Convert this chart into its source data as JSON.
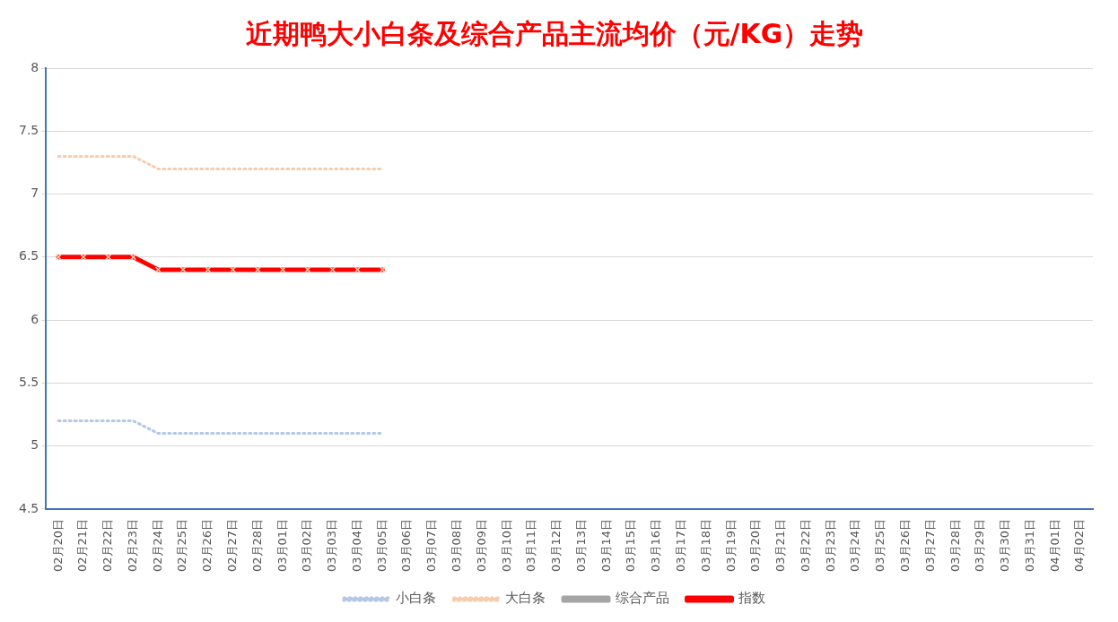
{
  "chart_data": {
    "type": "line",
    "title": "近期鸭大小白条及综合产品主流均价（元/KG）走势",
    "categories": [
      "02月20日",
      "02月21日",
      "02月22日",
      "02月23日",
      "02月24日",
      "02月25日",
      "02月26日",
      "02月27日",
      "02月28日",
      "03月01日",
      "03月02日",
      "03月03日",
      "03月04日",
      "03月05日",
      "03月06日",
      "03月07日",
      "03月08日",
      "03月09日",
      "03月10日",
      "03月11日",
      "03月12日",
      "03月13日",
      "03月14日",
      "03月15日",
      "03月16日",
      "03月17日",
      "03月18日",
      "03月19日",
      "03月20日",
      "03月21日",
      "03月22日",
      "03月23日",
      "03月24日",
      "03月25日",
      "03月26日",
      "03月27日",
      "03月28日",
      "03月29日",
      "03月30日",
      "03月31日",
      "04月01日",
      "04月02日"
    ],
    "series": [
      {
        "name": "小白条",
        "color": "#b4c7e7",
        "line_style": "dotted",
        "marker": "none",
        "values": [
          5.2,
          5.2,
          5.2,
          5.2,
          5.1,
          5.1,
          5.1,
          5.1,
          5.1,
          5.1,
          5.1,
          5.1,
          5.1,
          5.1,
          null,
          null,
          null,
          null,
          null,
          null,
          null,
          null,
          null,
          null,
          null,
          null,
          null,
          null,
          null,
          null,
          null,
          null,
          null,
          null,
          null,
          null,
          null,
          null,
          null,
          null,
          null,
          null
        ]
      },
      {
        "name": "大白条",
        "color": "#f8cbad",
        "line_style": "dotted",
        "marker": "none",
        "values": [
          7.3,
          7.3,
          7.3,
          7.3,
          7.2,
          7.2,
          7.2,
          7.2,
          7.2,
          7.2,
          7.2,
          7.2,
          7.2,
          7.2,
          null,
          null,
          null,
          null,
          null,
          null,
          null,
          null,
          null,
          null,
          null,
          null,
          null,
          null,
          null,
          null,
          null,
          null,
          null,
          null,
          null,
          null,
          null,
          null,
          null,
          null,
          null,
          null
        ]
      },
      {
        "name": "综合产品",
        "color": "#a5a5a5",
        "line_style": "solid",
        "marker": "none",
        "values": [
          null,
          null,
          null,
          null,
          null,
          null,
          null,
          null,
          null,
          null,
          null,
          null,
          null,
          null,
          null,
          null,
          null,
          null,
          null,
          null,
          null,
          null,
          null,
          null,
          null,
          null,
          null,
          null,
          null,
          null,
          null,
          null,
          null,
          null,
          null,
          null,
          null,
          null,
          null,
          null,
          null,
          null
        ]
      },
      {
        "name": "指数",
        "color": "#ff0000",
        "line_style": "solid",
        "marker": "cross",
        "values": [
          6.5,
          6.5,
          6.5,
          6.5,
          6.4,
          6.4,
          6.4,
          6.4,
          6.4,
          6.4,
          6.4,
          6.4,
          6.4,
          6.4,
          null,
          null,
          null,
          null,
          null,
          null,
          null,
          null,
          null,
          null,
          null,
          null,
          null,
          null,
          null,
          null,
          null,
          null,
          null,
          null,
          null,
          null,
          null,
          null,
          null,
          null,
          null,
          null
        ]
      }
    ],
    "ylim": [
      4.5,
      8
    ],
    "yticks": [
      4.5,
      5,
      5.5,
      6,
      6.5,
      7,
      7.5,
      8
    ],
    "grid": "y",
    "legend": "bottom"
  }
}
